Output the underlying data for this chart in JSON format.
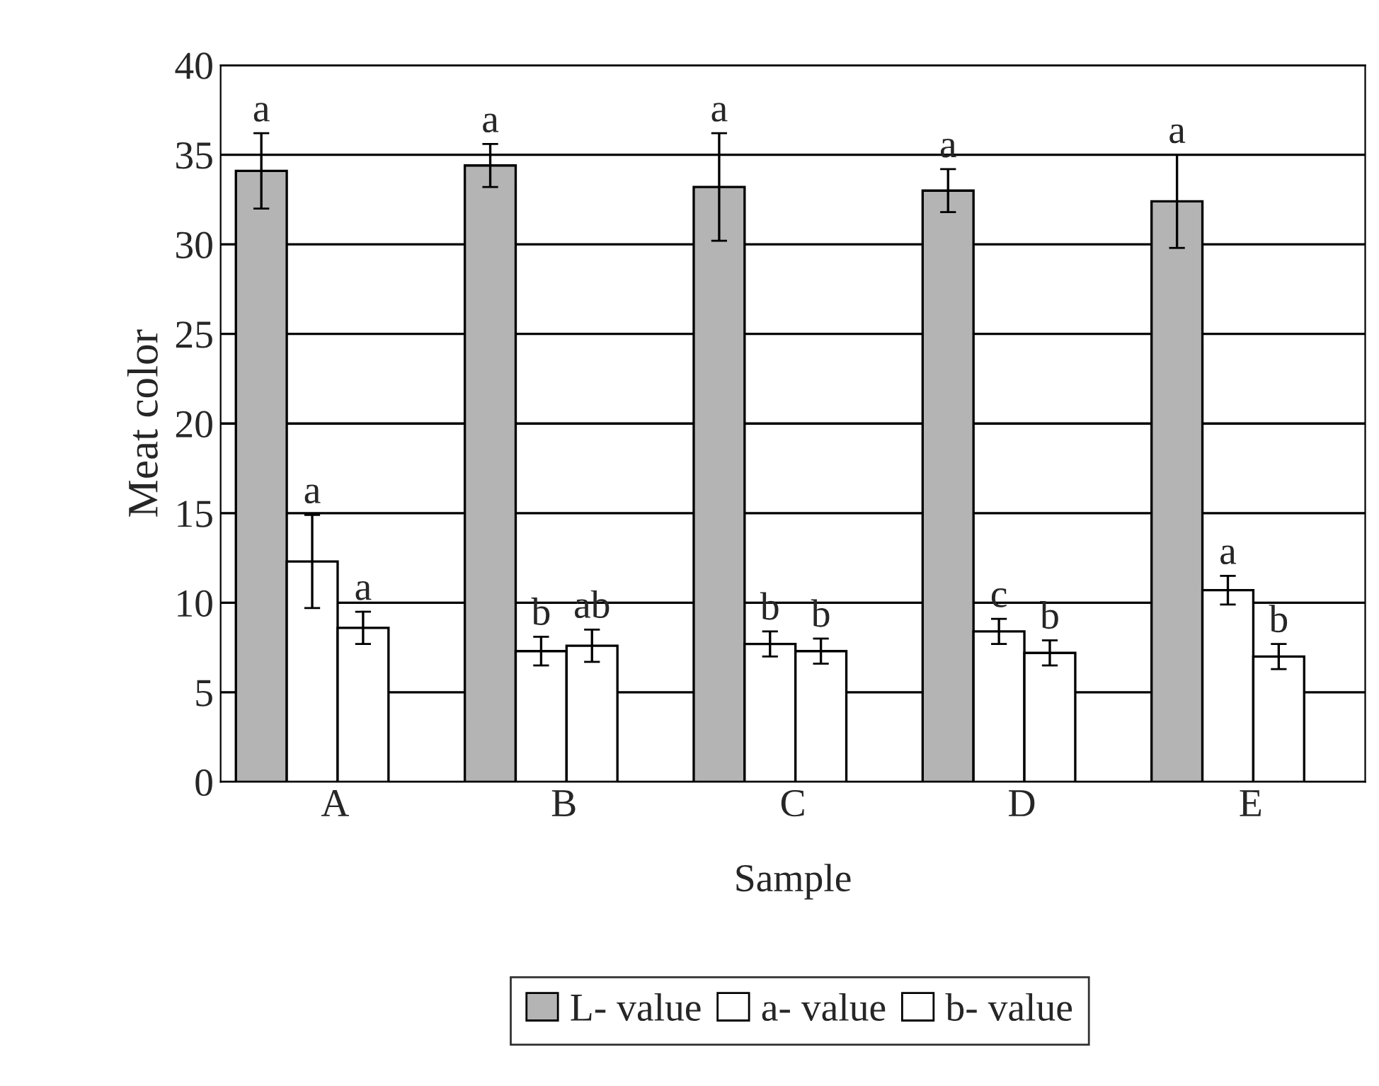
{
  "chart_data": {
    "type": "bar",
    "xlabel": "Sample",
    "ylabel": "Meat color",
    "categories": [
      "A",
      "B",
      "C",
      "D",
      "E"
    ],
    "series": [
      {
        "name": "L- value",
        "color": "#b4b4b4",
        "values": [
          34.1,
          34.4,
          33.2,
          33.0,
          32.4
        ],
        "errors": [
          2.1,
          1.2,
          3.0,
          1.2,
          2.6
        ],
        "value_labels": [
          "a",
          "a",
          "a",
          "a",
          "a"
        ]
      },
      {
        "name": "a- value",
        "color": "#ffffff",
        "values": [
          12.3,
          7.3,
          7.7,
          8.4,
          10.7
        ],
        "errors": [
          2.6,
          0.8,
          0.7,
          0.7,
          0.8
        ],
        "value_labels": [
          "a",
          "b",
          "b",
          "c",
          "a"
        ]
      },
      {
        "name": "b- value",
        "color": "#ffffff",
        "values": [
          8.6,
          7.6,
          7.3,
          7.2,
          7.0
        ],
        "errors": [
          0.9,
          0.9,
          0.7,
          0.7,
          0.7
        ],
        "value_labels": [
          "a",
          "ab",
          "b",
          "b",
          "b"
        ]
      }
    ],
    "ylim": [
      0,
      40
    ],
    "yticks": [
      0,
      5,
      10,
      15,
      20,
      25,
      30,
      35,
      40
    ],
    "grid": "y",
    "legend": "bottom"
  }
}
